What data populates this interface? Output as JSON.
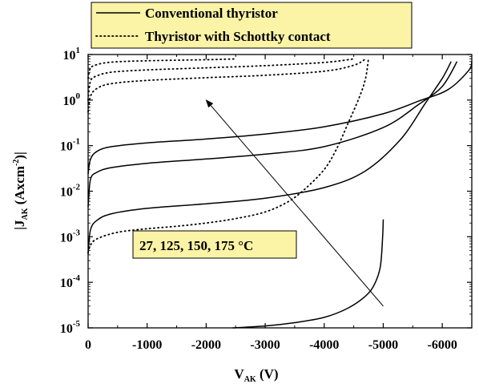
{
  "chart_data": {
    "type": "line",
    "title": "",
    "xlabel": {
      "main": "V",
      "sub": "AK",
      "unit": " (V)"
    },
    "ylabel": {
      "pre": "|J",
      "sub": "AK",
      "mid": "  (Axcm",
      "sup": "-2",
      "post": ")|"
    },
    "x_axis": {
      "range": [
        0,
        -6500
      ],
      "direction": "reversed",
      "ticks": [
        0,
        -1000,
        -2000,
        -3000,
        -4000,
        -5000,
        -6000
      ],
      "tick_labels": [
        "0",
        "-1000",
        "-2000",
        "-3000",
        "-4000",
        "-5000",
        "-6000"
      ]
    },
    "y_axis": {
      "scale": "log",
      "range": [
        1e-05,
        10
      ],
      "ticks": [
        1e-05,
        0.0001,
        0.001,
        0.01,
        0.1,
        1,
        10
      ],
      "tick_labels": [
        {
          "base": "10",
          "exp": "-5"
        },
        {
          "base": "10",
          "exp": "-4"
        },
        {
          "base": "10",
          "exp": "-3"
        },
        {
          "base": "10",
          "exp": "-2"
        },
        {
          "base": "10",
          "exp": "-1"
        },
        {
          "base": "10",
          "exp": "0"
        },
        {
          "base": "10",
          "exp": "1"
        }
      ]
    },
    "legend": {
      "placement": "top",
      "entries": [
        {
          "label": "Conventional thyristor",
          "style": "solid"
        },
        {
          "label": "Thyristor with Schottky contact",
          "style": "dotted"
        }
      ],
      "background": "#fbf3a6"
    },
    "annotation": {
      "text": "27, 125, 150, 175 °C",
      "background": "#fbf3a6",
      "arrow": {
        "from": [
          -5000,
          3e-05
        ],
        "to": [
          -2000,
          1
        ]
      }
    },
    "grid": false,
    "series": [
      {
        "style": "solid",
        "temperature_c": 27,
        "points": [
          [
            -2450,
            1e-05
          ],
          [
            -3000,
            1.1e-05
          ],
          [
            -3500,
            1.3e-05
          ],
          [
            -4000,
            1.7e-05
          ],
          [
            -4400,
            2.7e-05
          ],
          [
            -4700,
            5e-05
          ],
          [
            -4850,
            9e-05
          ],
          [
            -4950,
            0.00022
          ],
          [
            -4990,
            0.001
          ],
          [
            -5000,
            0.0024
          ]
        ]
      },
      {
        "style": "solid",
        "temperature_c": 125,
        "points": [
          [
            0,
            0.00042
          ],
          [
            -40,
            0.0014
          ],
          [
            -150,
            0.0023
          ],
          [
            -400,
            0.0032
          ],
          [
            -1000,
            0.0042
          ],
          [
            -2000,
            0.0053
          ],
          [
            -3000,
            0.007
          ],
          [
            -4000,
            0.012
          ],
          [
            -4700,
            0.028
          ],
          [
            -5300,
            0.14
          ],
          [
            -5700,
            0.8
          ],
          [
            -6000,
            3
          ],
          [
            -6150,
            7
          ]
        ]
      },
      {
        "style": "solid",
        "temperature_c": 150,
        "points": [
          [
            0,
            0.0045
          ],
          [
            -40,
            0.018
          ],
          [
            -150,
            0.026
          ],
          [
            -400,
            0.033
          ],
          [
            -1000,
            0.041
          ],
          [
            -2000,
            0.051
          ],
          [
            -3000,
            0.065
          ],
          [
            -4000,
            0.095
          ],
          [
            -5000,
            0.25
          ],
          [
            -5600,
            0.8
          ],
          [
            -6000,
            2
          ],
          [
            -6250,
            7
          ]
        ]
      },
      {
        "style": "solid",
        "temperature_c": 175,
        "points": [
          [
            0,
            0.024
          ],
          [
            -40,
            0.05
          ],
          [
            -150,
            0.075
          ],
          [
            -400,
            0.095
          ],
          [
            -1000,
            0.115
          ],
          [
            -2000,
            0.14
          ],
          [
            -3000,
            0.18
          ],
          [
            -4000,
            0.26
          ],
          [
            -5000,
            0.5
          ],
          [
            -5600,
            0.95
          ],
          [
            -6100,
            1.7
          ],
          [
            -6450,
            4.5
          ],
          [
            -6500,
            7
          ]
        ]
      },
      {
        "style": "dotted",
        "temperature_c": 27,
        "points": [
          [
            0,
            0.00045
          ],
          [
            -40,
            0.00065
          ],
          [
            -150,
            0.0009
          ],
          [
            -500,
            0.00125
          ],
          [
            -1000,
            0.0015
          ],
          [
            -1500,
            0.0017
          ],
          [
            -2000,
            0.002
          ],
          [
            -2500,
            0.0025
          ],
          [
            -3000,
            0.0035
          ],
          [
            -3400,
            0.006
          ],
          [
            -3700,
            0.012
          ],
          [
            -4000,
            0.03
          ],
          [
            -4200,
            0.08
          ],
          [
            -4400,
            0.3
          ],
          [
            -4600,
            1.2
          ],
          [
            -4700,
            3
          ],
          [
            -4750,
            8
          ]
        ]
      },
      {
        "style": "dotted",
        "temperature_c": 125,
        "points": [
          [
            0,
            0.55
          ],
          [
            -40,
            1.2
          ],
          [
            -150,
            1.8
          ],
          [
            -400,
            2.3
          ],
          [
            -1000,
            2.7
          ],
          [
            -2000,
            3.1
          ],
          [
            -3000,
            3.5
          ],
          [
            -4000,
            4.3
          ],
          [
            -4500,
            5.8
          ],
          [
            -4700,
            8
          ]
        ]
      },
      {
        "style": "dotted",
        "temperature_c": 150,
        "points": [
          [
            0,
            1.0
          ],
          [
            -40,
            2.6
          ],
          [
            -150,
            3.4
          ],
          [
            -400,
            4.1
          ],
          [
            -1000,
            4.6
          ],
          [
            -2000,
            5.1
          ],
          [
            -3000,
            5.7
          ],
          [
            -4000,
            6.7
          ],
          [
            -4500,
            8
          ]
        ]
      },
      {
        "style": "dotted",
        "temperature_c": 175,
        "points": [
          [
            0,
            3
          ],
          [
            -40,
            5
          ],
          [
            -150,
            6
          ],
          [
            -400,
            6.8
          ],
          [
            -1000,
            7.3
          ],
          [
            -2000,
            7.7
          ],
          [
            -2500,
            8
          ]
        ]
      }
    ]
  }
}
